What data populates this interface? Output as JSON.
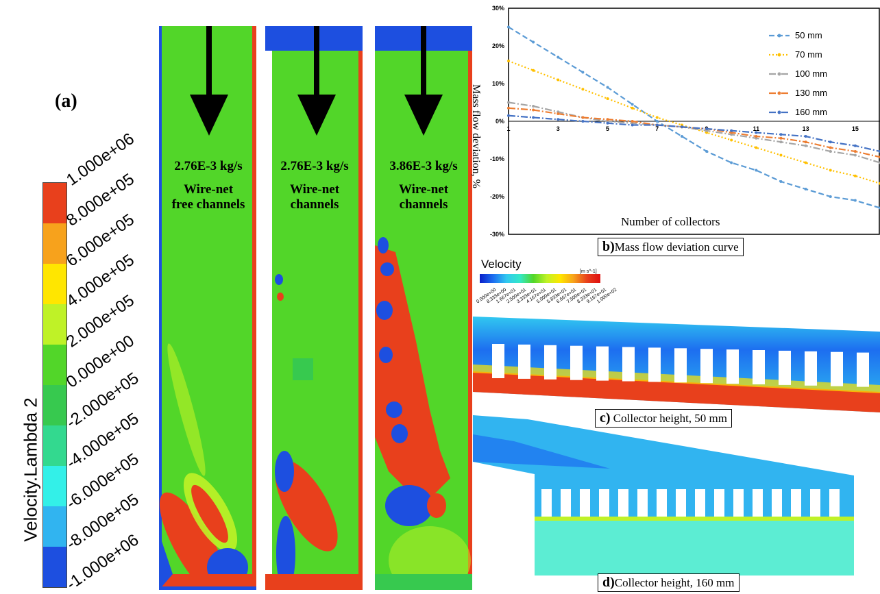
{
  "panel_a": {
    "label": "(a)",
    "legend_title": "Velocity.Lambda 2",
    "legend_ticks": [
      "1.000e+06",
      "8.000e+05",
      "6.000e+05",
      "4.000e+05",
      "2.000e+05",
      "0.000e+00",
      "-2.000e+05",
      "-4.000e+05",
      "-6.000e+05",
      "-8.000e+05",
      "-1.000e+06"
    ],
    "legend_colors": [
      "#e8401c",
      "#f7a21c",
      "#ffe600",
      "#bff227",
      "#52d629",
      "#37c94f",
      "#33d98f",
      "#33f0e8",
      "#31b4f0",
      "#1d4fe0"
    ],
    "panels": [
      {
        "flow": "2.76E-3 kg/s",
        "line1": "Wire-net",
        "line2": "free channels"
      },
      {
        "flow": "2.76E-3 kg/s",
        "line1": "Wire-net",
        "line2": "channels"
      },
      {
        "flow": "3.86E-3 kg/s",
        "line1": "Wire-net",
        "line2": "channels"
      }
    ]
  },
  "panel_b": {
    "caption_letter": "b)",
    "caption_text": "Mass flow deviation curve"
  },
  "panel_c": {
    "caption_letter": "c)",
    "caption_text": " Collector height, 50 mm",
    "velocity_title": "Velocity",
    "velocity_unit": "[m s^-1]",
    "velocity_ticks": [
      "0.000e+00",
      "8.333e+00",
      "1.667e+01",
      "2.500e+01",
      "3.333e+01",
      "4.167e+01",
      "5.000e+01",
      "5.833e+01",
      "6.667e+01",
      "7.500e+01",
      "8.333e+01",
      "9.167e+01",
      "1.000e+02"
    ]
  },
  "panel_d": {
    "caption_letter": "d)",
    "caption_text": "Collector height, 160 mm"
  },
  "chart_data": {
    "type": "line",
    "title": "",
    "xlabel": "Number of collectors",
    "ylabel": "Mass flow deviation, %",
    "x": [
      1,
      2,
      3,
      4,
      5,
      6,
      7,
      8,
      9,
      10,
      11,
      12,
      13,
      14,
      15,
      16
    ],
    "xticks": [
      "1",
      "3",
      "5",
      "7",
      "9",
      "11",
      "13",
      "15"
    ],
    "yticks": [
      "30%",
      "20%",
      "10%",
      "0%",
      "-10%",
      "-20%",
      "-30%"
    ],
    "ylim": [
      -30,
      30
    ],
    "xlim": [
      1,
      16
    ],
    "legend_position": "top-right",
    "series": [
      {
        "name": "50 mm",
        "color": "#5b9bd5",
        "dash": "8,4",
        "values": [
          25,
          21,
          17,
          13,
          9,
          4.5,
          0,
          -4,
          -8,
          -11,
          -13,
          -16,
          -18,
          -20,
          -21,
          -23
        ]
      },
      {
        "name": "70 mm",
        "color": "#ffc000",
        "dash": "2,3",
        "values": [
          16,
          13.5,
          11,
          8.5,
          6,
          3.5,
          1,
          -1,
          -3,
          -5,
          -7,
          -9,
          -11,
          -13,
          -14.5,
          -16.5
        ]
      },
      {
        "name": "100 mm",
        "color": "#a5a5a5",
        "dash": "10,3,2,3",
        "values": [
          5,
          4,
          2.5,
          1,
          0,
          -0.5,
          -1,
          -1.5,
          -2.5,
          -3.5,
          -4.5,
          -5.5,
          -6.5,
          -8,
          -9,
          -11
        ]
      },
      {
        "name": "130 mm",
        "color": "#ed7d31",
        "dash": "10,3,2,3",
        "values": [
          3.5,
          3,
          2,
          1,
          0.5,
          0,
          -1,
          -1.5,
          -2,
          -3,
          -4,
          -4.5,
          -5.5,
          -7,
          -8,
          -9.5
        ]
      },
      {
        "name": "160 mm",
        "color": "#4472c4",
        "dash": "10,3,2,3",
        "values": [
          1.5,
          1,
          0.5,
          0,
          -0.5,
          -1,
          -1,
          -1.5,
          -2,
          -2.5,
          -3,
          -3.5,
          -4,
          -5.5,
          -6.5,
          -8
        ]
      }
    ]
  }
}
